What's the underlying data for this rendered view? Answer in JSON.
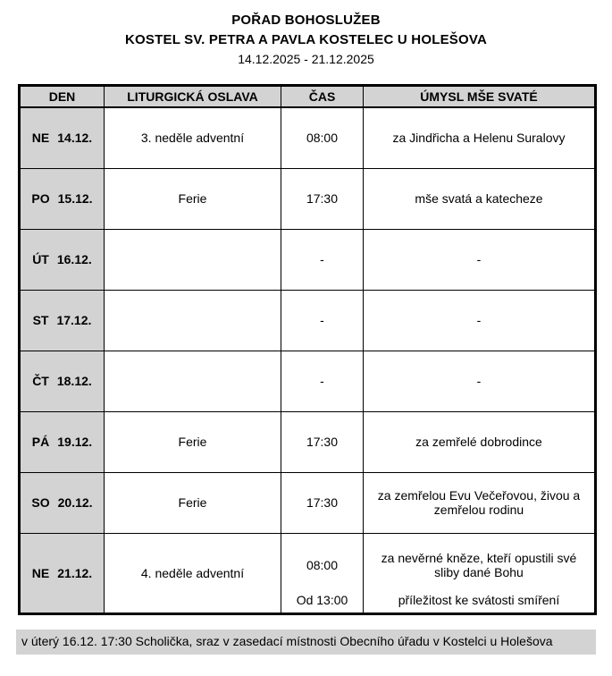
{
  "page": {
    "title_line1": "POŘAD BOHOSLUŽEB",
    "title_line2": "KOSTEL SV. PETRA A PAVLA KOSTELEC U HOLEŠOVA",
    "date_range": "14.12.2025 - 21.12.2025"
  },
  "table": {
    "columns": [
      "DEN",
      "LITURGICKÁ OSLAVA",
      "ČAS",
      "ÚMYSL MŠE SVATÉ"
    ],
    "rows": [
      {
        "day": "NE",
        "date": "14.12.",
        "celebration": "3. neděle adventní",
        "time": "08:00",
        "intention": "za Jindřicha a Helenu Suralovy"
      },
      {
        "day": "PO",
        "date": "15.12.",
        "celebration": "Ferie",
        "time": "17:30",
        "intention": "mše svatá a katecheze"
      },
      {
        "day": "ÚT",
        "date": "16.12.",
        "celebration": "",
        "time": "-",
        "intention": "-"
      },
      {
        "day": "ST",
        "date": "17.12.",
        "celebration": "",
        "time": "-",
        "intention": "-"
      },
      {
        "day": "ČT",
        "date": "18.12.",
        "celebration": "",
        "time": "-",
        "intention": "-"
      },
      {
        "day": "PÁ",
        "date": "19.12.",
        "celebration": "Ferie",
        "time": "17:30",
        "intention": "za zemřelé dobrodince"
      },
      {
        "day": "SO",
        "date": "20.12.",
        "celebration": "Ferie",
        "time": "17:30",
        "intention": "za zemřelou Evu Večeřovou, živou a zemřelou rodinu"
      },
      {
        "day": "NE",
        "date": "21.12.",
        "celebration": "4. neděle adventní",
        "entries": [
          {
            "time": "08:00",
            "intention": "za nevěrné kněze, kteří opustili své sliby dané Bohu"
          },
          {
            "time": "Od 13:00",
            "intention": "příležitost ke svátosti smíření"
          }
        ]
      }
    ]
  },
  "footer": {
    "note": "v úterý 16.12. 17:30 Scholička, sraz v zasedací místnosti Obecního úřadu v Kostelci u Holešova"
  },
  "colors": {
    "cell_gray": "#d3d3d3",
    "border": "#000000",
    "background": "#ffffff"
  }
}
